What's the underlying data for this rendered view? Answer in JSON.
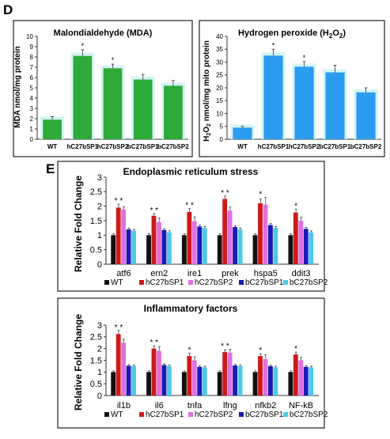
{
  "panels": {
    "D": "D",
    "E": "E"
  },
  "chart_data": [
    {
      "id": "mda",
      "type": "bar",
      "title": "Malondialdehyde (MDA)",
      "ylabel": "MDA nmol/mg protein",
      "ylim": [
        0,
        10
      ],
      "yticks": [
        0,
        1,
        2,
        3,
        4,
        5,
        6,
        7,
        8,
        9,
        10
      ],
      "categories": [
        "WT",
        "hC27bSP1",
        "hC27bSP2",
        "bC27bSP1",
        "bC27bSP2"
      ],
      "values": [
        1.9,
        8.1,
        6.9,
        5.8,
        5.2
      ],
      "errors": [
        0.3,
        0.6,
        0.4,
        0.5,
        0.5
      ],
      "significance": [
        "",
        "*",
        "*",
        "",
        ""
      ],
      "color": "#2eaa38"
    },
    {
      "id": "h2o2",
      "type": "bar",
      "title_main": "Hydrogen peroxide (H",
      "title_sub": "2",
      "title_sub2": "O",
      "title_sub3": "2",
      "title_end": ")",
      "ylabel_a": "H",
      "ylabel_s1": "2",
      "ylabel_b": "O",
      "ylabel_s2": "2",
      "ylabel_c": " nmol/mg mito protein",
      "ylim": [
        0,
        40
      ],
      "yticks": [
        0,
        5,
        10,
        15,
        20,
        25,
        30,
        35,
        40
      ],
      "categories": [
        "WT",
        "hC27bSP1",
        "hC27bSP2",
        "bC27bSP1",
        "bC27bSP2"
      ],
      "values": [
        4.5,
        32.5,
        28.2,
        26.0,
        18.2
      ],
      "errors": [
        0.5,
        2.5,
        2.0,
        2.8,
        1.8
      ],
      "significance": [
        "",
        "*",
        "*",
        "",
        ""
      ],
      "color": "#2b9cf0"
    },
    {
      "id": "er",
      "type": "bar",
      "title": "Endoplasmic reticulum stress",
      "ylabel": "Relative Fold Change",
      "ylim": [
        0,
        3
      ],
      "yticks": [
        0,
        0.5,
        1,
        1.5,
        2,
        2.5,
        3
      ],
      "categories": [
        "atf6",
        "ern2",
        "ire1",
        "prek",
        "hspa5",
        "ddit3"
      ],
      "series": [
        {
          "name": "WT",
          "color": "#111111",
          "values": [
            1.0,
            1.0,
            1.0,
            1.0,
            1.0,
            1.0
          ],
          "errors": [
            0.05,
            0.05,
            0.05,
            0.05,
            0.05,
            0.05
          ]
        },
        {
          "name": "hC27bSP1",
          "color": "#cc1a1a",
          "values": [
            1.95,
            1.67,
            1.8,
            2.25,
            2.1,
            1.78
          ],
          "errors": [
            0.12,
            0.08,
            0.12,
            0.1,
            0.15,
            0.12
          ]
        },
        {
          "name": "hC27bSP2",
          "color": "#e070e0",
          "values": [
            1.88,
            1.45,
            1.48,
            1.85,
            2.05,
            1.5
          ],
          "errors": [
            0.1,
            0.15,
            0.15,
            0.12,
            0.25,
            0.12
          ]
        },
        {
          "name": "bC27bSP1",
          "color": "#1a1ab4",
          "values": [
            1.2,
            1.18,
            1.3,
            1.28,
            1.35,
            1.22
          ],
          "errors": [
            0.05,
            0.05,
            0.05,
            0.05,
            0.05,
            0.05
          ]
        },
        {
          "name": "bC27bSP2",
          "color": "#4cc8ea",
          "values": [
            1.15,
            1.1,
            1.25,
            1.2,
            1.25,
            1.1
          ],
          "errors": [
            0.05,
            0.05,
            0.05,
            0.05,
            0.05,
            0.05
          ]
        }
      ],
      "significance": [
        "* *",
        "* *",
        "* *",
        "* *",
        "*",
        "*"
      ]
    },
    {
      "id": "inflam",
      "type": "bar",
      "title": "Inflammatory factors",
      "ylabel": "Relative Fold Change",
      "ylim": [
        0,
        3
      ],
      "yticks": [
        0,
        0.5,
        1,
        1.5,
        2,
        2.5,
        3
      ],
      "categories": [
        "il1b",
        "il6",
        "tnfa",
        "lfng",
        "nfkb2",
        "NF-kB"
      ],
      "series": [
        {
          "name": "WT",
          "color": "#111111",
          "values": [
            1.0,
            1.0,
            1.0,
            1.0,
            1.0,
            1.0
          ],
          "errors": [
            0.05,
            0.05,
            0.05,
            0.05,
            0.05,
            0.05
          ]
        },
        {
          "name": "hC27bSP1",
          "color": "#cc1a1a",
          "values": [
            2.62,
            2.0,
            1.68,
            1.85,
            1.68,
            1.75
          ],
          "errors": [
            0.15,
            0.12,
            0.12,
            0.1,
            0.1,
            0.1
          ]
        },
        {
          "name": "hC27bSP2",
          "color": "#e070e0",
          "values": [
            2.25,
            1.9,
            1.5,
            1.82,
            1.55,
            1.5
          ],
          "errors": [
            0.15,
            0.18,
            0.15,
            0.15,
            0.18,
            0.12
          ]
        },
        {
          "name": "bC27bSP1",
          "color": "#1a1ab4",
          "values": [
            1.27,
            1.3,
            1.22,
            1.28,
            1.25,
            1.22
          ],
          "errors": [
            0.05,
            0.05,
            0.05,
            0.05,
            0.05,
            0.05
          ]
        },
        {
          "name": "bC27bSP2",
          "color": "#4cc8ea",
          "values": [
            1.25,
            1.25,
            1.2,
            1.25,
            1.2,
            1.2
          ],
          "errors": [
            0.05,
            0.05,
            0.05,
            0.05,
            0.05,
            0.05
          ]
        }
      ],
      "significance": [
        "* *",
        "* *",
        "*",
        "* *",
        "*",
        "*"
      ]
    }
  ]
}
